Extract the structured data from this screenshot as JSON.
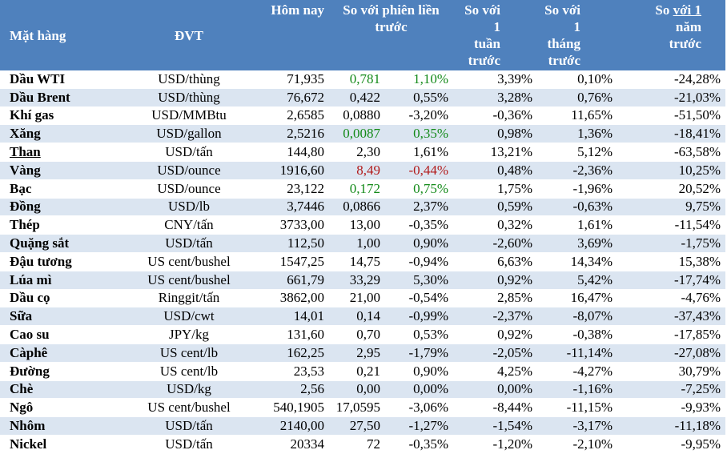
{
  "colors": {
    "header_bg": "#4f81bd",
    "band": "#dbe5f1",
    "up": "#138a19",
    "down": "#b21b1b"
  },
  "headers": {
    "item": "Mặt hàng",
    "unit": "ĐVT",
    "today": "Hôm nay",
    "prev_session_line1": "So với phiên liền",
    "prev_session_line2": "trước",
    "week_line1": "So với 1",
    "week_line2": "tuần",
    "week_line3": "trước",
    "month_line1": "So với 1",
    "month_line2": "tháng",
    "month_line3": "trước",
    "year_prefix": "So ",
    "year_underlined": "với 1",
    "year_line2": "năm",
    "year_line3": "trước"
  },
  "rows": [
    {
      "name": "Dầu WTI",
      "unit": "USD/thùng",
      "today": "71,935",
      "chg": "0,781",
      "chg_pct": "1,10%",
      "week": "3,39%",
      "month": "0,10%",
      "year": "-24,28%"
    },
    {
      "name": "Dầu Brent",
      "unit": "USD/thùng",
      "today": "76,672",
      "chg": "0,422",
      "chg_pct": "0,55%",
      "week": "3,28%",
      "month": "0,76%",
      "year": "-21,03%"
    },
    {
      "name": "Khí gas",
      "unit": "USD/MMBtu",
      "today": "2,6585",
      "chg": "0,0880",
      "chg_pct": "-3,20%",
      "week": "-0,36%",
      "month": "11,65%",
      "year": "-51,50%"
    },
    {
      "name": "Xăng",
      "unit": "USD/gallon",
      "today": "2,5216",
      "chg": "0,0087",
      "chg_pct": "0,35%",
      "week": "0,98%",
      "month": "1,36%",
      "year": "-18,41%"
    },
    {
      "name": "Than",
      "unit": "USD/tấn",
      "today": "144,80",
      "chg": "2,30",
      "chg_pct": "1,61%",
      "week": "13,21%",
      "month": "5,12%",
      "year": "-63,58%"
    },
    {
      "name": "Vàng",
      "unit": "USD/ounce",
      "today": "1916,60",
      "chg": "8,49",
      "chg_pct": "-0,44%",
      "week": "0,48%",
      "month": "-2,36%",
      "year": "10,25%"
    },
    {
      "name": "Bạc",
      "unit": "USD/ounce",
      "today": "23,122",
      "chg": "0,172",
      "chg_pct": "0,75%",
      "week": "1,75%",
      "month": "-1,96%",
      "year": "20,52%"
    },
    {
      "name": "Đồng",
      "unit": "USD/lb",
      "today": "3,7446",
      "chg": "0,0866",
      "chg_pct": "2,37%",
      "week": "0,59%",
      "month": "-0,63%",
      "year": "9,75%"
    },
    {
      "name": "Thép",
      "unit": "CNY/tấn",
      "today": "3733,00",
      "chg": "13,00",
      "chg_pct": "-0,35%",
      "week": "0,32%",
      "month": "1,61%",
      "year": "-11,54%"
    },
    {
      "name": "Quặng sắt",
      "unit": "USD/tấn",
      "today": "112,50",
      "chg": "1,00",
      "chg_pct": "0,90%",
      "week": "-2,60%",
      "month": "3,69%",
      "year": "-1,75%"
    },
    {
      "name": "Đậu tương",
      "unit": "US cent/bushel",
      "today": "1547,25",
      "chg": "14,75",
      "chg_pct": "-0,94%",
      "week": "6,63%",
      "month": "14,34%",
      "year": "15,38%"
    },
    {
      "name": "Lúa mì",
      "unit": "US cent/bushel",
      "today": "661,79",
      "chg": "33,29",
      "chg_pct": "5,30%",
      "week": "0,92%",
      "month": "5,42%",
      "year": "-17,74%"
    },
    {
      "name": "Dầu cọ",
      "unit": "Ringgit/tấn",
      "today": "3862,00",
      "chg": "21,00",
      "chg_pct": "-0,54%",
      "week": "2,85%",
      "month": "16,47%",
      "year": "-4,76%"
    },
    {
      "name": "Sữa",
      "unit": "USD/cwt",
      "today": "14,01",
      "chg": "0,14",
      "chg_pct": "-0,99%",
      "week": "-2,37%",
      "month": "-8,07%",
      "year": "-37,43%"
    },
    {
      "name": "Cao su",
      "unit": "JPY/kg",
      "today": "131,60",
      "chg": "0,70",
      "chg_pct": "0,53%",
      "week": "0,92%",
      "month": "-0,38%",
      "year": "-17,85%"
    },
    {
      "name": "Càphê",
      "unit": "US cent/lb",
      "today": "162,25",
      "chg": "2,95",
      "chg_pct": "-1,79%",
      "week": "-2,05%",
      "month": "-11,14%",
      "year": "-27,08%"
    },
    {
      "name": "Đường",
      "unit": "US cent/lb",
      "today": "23,53",
      "chg": "0,21",
      "chg_pct": "0,90%",
      "week": "4,25%",
      "month": "-4,27%",
      "year": "30,79%"
    },
    {
      "name": "Chè",
      "unit": "USD/kg",
      "today": "2,56",
      "chg": "0,00",
      "chg_pct": "0,00%",
      "week": "0,00%",
      "month": "-1,16%",
      "year": "-7,25%"
    },
    {
      "name": "Ngô",
      "unit": "US cent/bushel",
      "today": "540,1905",
      "chg": "17,0595",
      "chg_pct": "-3,06%",
      "week": "-8,44%",
      "month": "-11,15%",
      "year": "-9,93%"
    },
    {
      "name": "Nhôm",
      "unit": "USD/tấn",
      "today": "2140,00",
      "chg": "27,50",
      "chg_pct": "-1,27%",
      "week": "-1,54%",
      "month": "-3,17%",
      "year": "-11,18%"
    },
    {
      "name": "Nickel",
      "unit": "USD/tấn",
      "today": "20334",
      "chg": "72",
      "chg_pct": "-0,35%",
      "week": "-1,20%",
      "month": "-2,10%",
      "year": "-9,95%"
    }
  ]
}
